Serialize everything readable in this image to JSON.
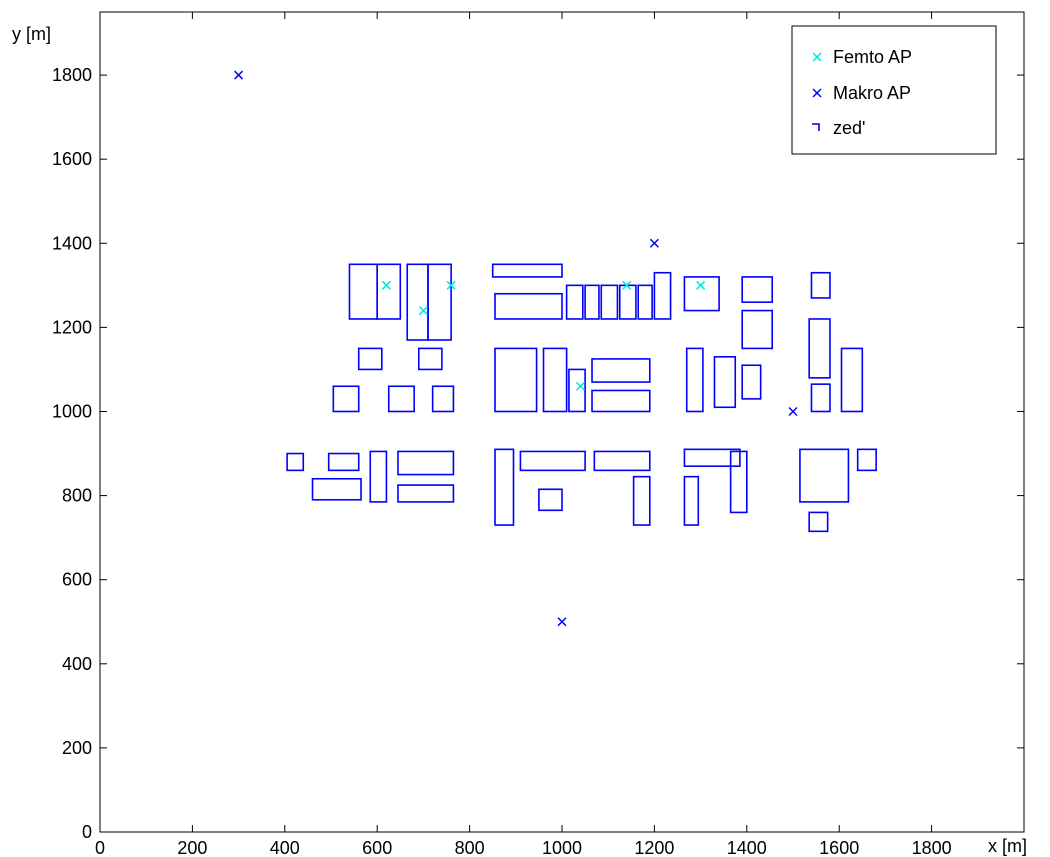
{
  "chart_data": {
    "type": "scatter",
    "xlabel": "x [m]",
    "ylabel": "y [m]",
    "xlim": [
      0,
      2000
    ],
    "ylim": [
      0,
      1950
    ],
    "xticks": [
      0,
      200,
      400,
      600,
      800,
      1000,
      1200,
      1400,
      1600,
      1800
    ],
    "yticks": [
      0,
      200,
      400,
      600,
      800,
      1000,
      1200,
      1400,
      1600,
      1800
    ],
    "grid": false,
    "legend_position": "top-right",
    "colors": {
      "femto": "#00e5e5",
      "makro": "#0000ff",
      "walls": "#0000ff"
    },
    "series": [
      {
        "name": "Femto AP",
        "marker": "x",
        "points": [
          [
            620,
            1300
          ],
          [
            700,
            1240
          ],
          [
            760,
            1300
          ],
          [
            1040,
            1060
          ],
          [
            1140,
            1300
          ],
          [
            1300,
            1300
          ]
        ]
      },
      {
        "name": "Makro AP",
        "marker": "x",
        "points": [
          [
            300,
            1800
          ],
          [
            1000,
            500
          ],
          [
            1200,
            1400
          ],
          [
            1500,
            1000
          ]
        ]
      },
      {
        "name": "zed'",
        "marker": "line",
        "rects": [
          [
            540,
            1220,
            600,
            1350
          ],
          [
            600,
            1220,
            650,
            1350
          ],
          [
            665,
            1170,
            710,
            1350
          ],
          [
            710,
            1170,
            760,
            1350
          ],
          [
            560,
            1100,
            610,
            1150
          ],
          [
            690,
            1100,
            740,
            1150
          ],
          [
            505,
            1000,
            560,
            1060
          ],
          [
            625,
            1000,
            680,
            1060
          ],
          [
            720,
            1000,
            765,
            1060
          ],
          [
            850,
            1320,
            1000,
            1350
          ],
          [
            855,
            1220,
            1000,
            1280
          ],
          [
            1010,
            1220,
            1045,
            1300
          ],
          [
            1050,
            1220,
            1080,
            1300
          ],
          [
            1085,
            1220,
            1120,
            1300
          ],
          [
            1125,
            1220,
            1160,
            1300
          ],
          [
            1165,
            1220,
            1195,
            1300
          ],
          [
            1200,
            1220,
            1235,
            1330
          ],
          [
            1265,
            1240,
            1340,
            1320
          ],
          [
            1390,
            1260,
            1455,
            1320
          ],
          [
            1390,
            1150,
            1455,
            1240
          ],
          [
            1540,
            1270,
            1580,
            1330
          ],
          [
            855,
            1000,
            945,
            1150
          ],
          [
            960,
            1000,
            1010,
            1150
          ],
          [
            1015,
            1000,
            1050,
            1100
          ],
          [
            1065,
            1070,
            1190,
            1125
          ],
          [
            1065,
            1000,
            1190,
            1050
          ],
          [
            1270,
            1000,
            1305,
            1150
          ],
          [
            1330,
            1010,
            1375,
            1130
          ],
          [
            1390,
            1030,
            1430,
            1110
          ],
          [
            1535,
            1080,
            1580,
            1220
          ],
          [
            1540,
            1000,
            1580,
            1065
          ],
          [
            1605,
            1000,
            1650,
            1150
          ],
          [
            405,
            860,
            440,
            900
          ],
          [
            495,
            860,
            560,
            900
          ],
          [
            460,
            790,
            565,
            840
          ],
          [
            585,
            785,
            620,
            905
          ],
          [
            645,
            850,
            765,
            905
          ],
          [
            645,
            785,
            765,
            825
          ],
          [
            855,
            730,
            895,
            910
          ],
          [
            910,
            860,
            1050,
            905
          ],
          [
            950,
            765,
            1000,
            815
          ],
          [
            1070,
            860,
            1190,
            905
          ],
          [
            1155,
            730,
            1190,
            845
          ],
          [
            1265,
            870,
            1385,
            910
          ],
          [
            1265,
            730,
            1295,
            845
          ],
          [
            1365,
            760,
            1400,
            905
          ],
          [
            1515,
            785,
            1620,
            910
          ],
          [
            1640,
            860,
            1680,
            910
          ],
          [
            1535,
            715,
            1575,
            760
          ]
        ]
      }
    ]
  }
}
